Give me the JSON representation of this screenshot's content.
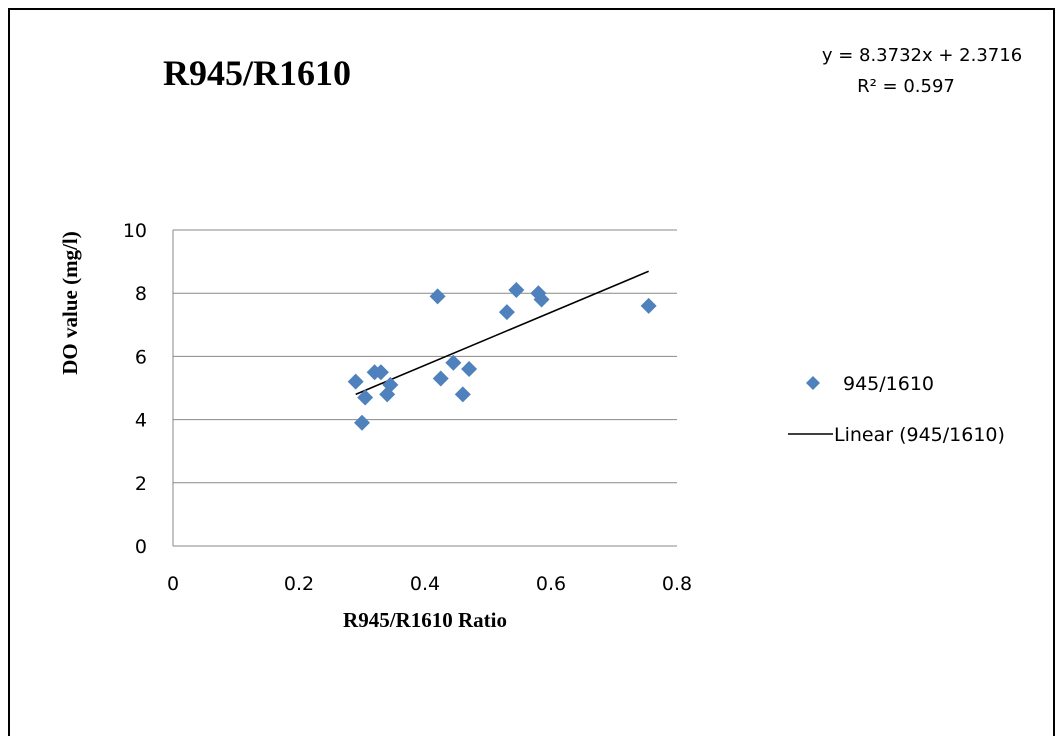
{
  "chart_data": {
    "type": "scatter",
    "title": "R945/R1610",
    "xlabel": "R945/R1610 Ratio",
    "ylabel": "DO value (mg/l)",
    "xlim": [
      0,
      0.8
    ],
    "ylim": [
      0,
      10
    ],
    "x_ticks": [
      "0",
      "0.2",
      "0.4",
      "0.6",
      "0.8"
    ],
    "y_ticks": [
      "0",
      "2",
      "4",
      "6",
      "8",
      "10"
    ],
    "grid": "horizontal",
    "legend_position": "right",
    "series": [
      {
        "name": "945/1610",
        "marker": "diamond",
        "color": "#4F81BD",
        "points": [
          {
            "x": 0.29,
            "y": 5.2
          },
          {
            "x": 0.3,
            "y": 3.9
          },
          {
            "x": 0.305,
            "y": 4.7
          },
          {
            "x": 0.32,
            "y": 5.5
          },
          {
            "x": 0.33,
            "y": 5.5
          },
          {
            "x": 0.34,
            "y": 4.8
          },
          {
            "x": 0.345,
            "y": 5.1
          },
          {
            "x": 0.42,
            "y": 7.9
          },
          {
            "x": 0.425,
            "y": 5.3
          },
          {
            "x": 0.445,
            "y": 5.8
          },
          {
            "x": 0.46,
            "y": 4.8
          },
          {
            "x": 0.47,
            "y": 5.6
          },
          {
            "x": 0.53,
            "y": 7.4
          },
          {
            "x": 0.545,
            "y": 8.1
          },
          {
            "x": 0.58,
            "y": 8.0
          },
          {
            "x": 0.585,
            "y": 7.8
          },
          {
            "x": 0.755,
            "y": 7.6
          }
        ]
      },
      {
        "name": "Linear (945/1610)",
        "type": "line",
        "color": "#000000",
        "slope": 8.3732,
        "intercept": 2.3716,
        "x_range": [
          0.29,
          0.755
        ]
      }
    ],
    "trendline_equation": "y = 8.3732x + 2.3716",
    "r_squared": "R² = 0.597"
  }
}
